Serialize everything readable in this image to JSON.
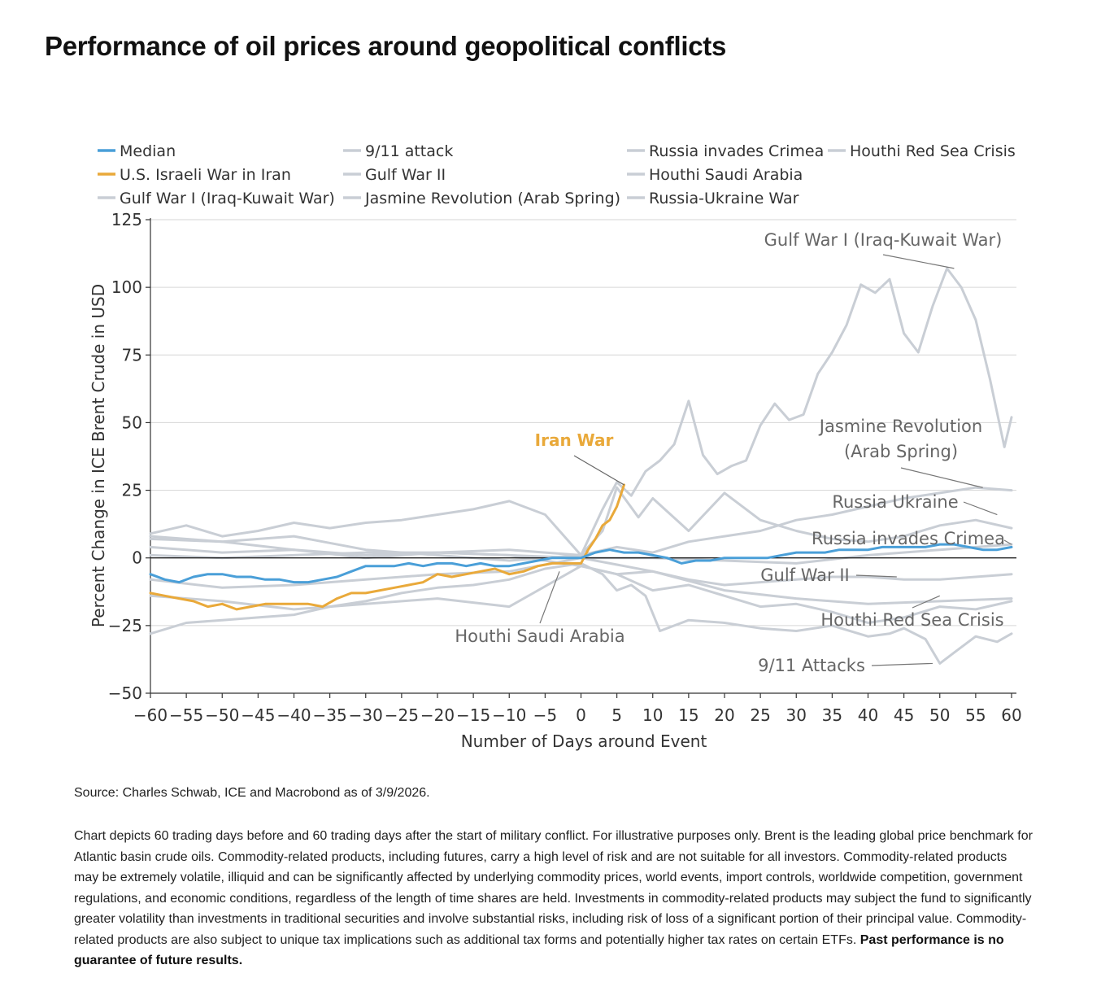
{
  "page": {
    "title": "Performance of oil prices around geopolitical conflicts",
    "source": "Source: Charles Schwab, ICE and Macrobond as of 3/9/2026.",
    "disclaimer": "Chart depicts 60 trading days before and 60 trading days after the start of military conflict. For illustrative purposes only. Brent is the leading global price benchmark for Atlantic basin crude oils. Commodity-related products, including futures, carry a high level of risk and are not suitable for all investors. Commodity-related products may be extremely volatile, illiquid and can be significantly affected by underlying commodity prices, world events, import controls, worldwide competition, government regulations, and economic conditions, regardless of the length of time shares are held. Investments in commodity-related products may subject the fund to significantly greater volatility than investments in traditional securities and involve substantial risks, including risk of loss of a significant portion of their principal value. Commodity-related products are also subject to unique tax implications such as additional tax forms and potentially higher tax rates on certain ETFs.",
    "disclaimer_bold": "Past performance is no guarantee of future results."
  },
  "chart_data": {
    "type": "line",
    "xlabel": "Number of Days around Event",
    "ylabel": "Percent Change in ICE Brent Crude in USD",
    "xlim": [
      -60,
      60
    ],
    "ylim": [
      -50,
      125
    ],
    "xticks": [
      -60,
      -55,
      -50,
      -45,
      -40,
      -35,
      -30,
      -25,
      -20,
      -15,
      -10,
      -5,
      0,
      5,
      10,
      15,
      20,
      25,
      30,
      35,
      40,
      45,
      50,
      55,
      60
    ],
    "yticks": [
      -50,
      -25,
      0,
      25,
      50,
      75,
      100,
      125
    ],
    "legend": [
      "Median",
      "9/11 attack",
      "Russia invades Crimea",
      "Houthi Red Sea Crisis",
      "U.S. Israeli War in Iran",
      "Gulf War II",
      "Houthi Saudi Arabia",
      "Gulf War I (Iraq-Kuwait War)",
      "Jasmine Revolution (Arab Spring)",
      "Russia-Ukraine War"
    ],
    "legend_placement": "top",
    "grid": "horizontal",
    "colors": {
      "median": "#4a9fd8",
      "iran": "#e9a93a",
      "other": "#c9ced5",
      "zero": "#222222",
      "grid": "#d6d6d6",
      "annot": "#555555",
      "iran_annot": "#e9a93a"
    },
    "series": [
      {
        "name": "Gulf War I (Iraq-Kuwait War)",
        "x": [
          -60,
          -55,
          -50,
          -45,
          -40,
          -35,
          -30,
          -25,
          -20,
          -15,
          -10,
          -5,
          0,
          3,
          5,
          7,
          9,
          11,
          13,
          15,
          17,
          19,
          21,
          23,
          25,
          27,
          29,
          31,
          33,
          35,
          37,
          39,
          41,
          43,
          45,
          47,
          49,
          51,
          53,
          55,
          57,
          59,
          60
        ],
        "y": [
          9,
          12,
          8,
          10,
          13,
          11,
          13,
          14,
          16,
          18,
          21,
          16,
          1,
          18,
          28,
          23,
          32,
          36,
          42,
          58,
          38,
          31,
          34,
          36,
          49,
          57,
          51,
          53,
          68,
          76,
          86,
          101,
          98,
          103,
          83,
          76,
          93,
          107,
          100,
          88,
          66,
          41,
          52
        ]
      },
      {
        "name": "Jasmine Revolution (Arab Spring)",
        "x": [
          -60,
          -50,
          -40,
          -30,
          -20,
          -10,
          -5,
          0,
          5,
          10,
          15,
          20,
          25,
          30,
          35,
          40,
          45,
          50,
          55,
          60
        ],
        "y": [
          8,
          6,
          8,
          3,
          1,
          -1,
          0,
          1,
          4,
          2,
          6,
          8,
          10,
          14,
          16,
          19,
          22,
          24,
          26,
          25
        ]
      },
      {
        "name": "Russia-Ukraine War",
        "x": [
          -60,
          -50,
          -40,
          -30,
          -20,
          -10,
          -5,
          0,
          3,
          5,
          8,
          10,
          15,
          20,
          25,
          30,
          35,
          40,
          45,
          50,
          55,
          60
        ],
        "y": [
          4,
          2,
          3,
          1,
          2,
          3,
          2,
          1,
          10,
          26,
          15,
          22,
          10,
          24,
          14,
          10,
          7,
          6,
          8,
          12,
          14,
          11
        ]
      },
      {
        "name": "Russia invades Crimea",
        "x": [
          -60,
          -50,
          -40,
          -30,
          -20,
          -10,
          0,
          10,
          20,
          30,
          40,
          50,
          60
        ],
        "y": [
          1,
          0,
          1,
          2,
          2,
          1,
          0,
          0,
          -1,
          -2,
          1,
          3,
          5
        ]
      },
      {
        "name": "Gulf War II",
        "x": [
          -60,
          -50,
          -40,
          -30,
          -20,
          -10,
          0,
          5,
          10,
          15,
          20,
          25,
          30,
          35,
          40,
          45,
          50,
          55,
          60
        ],
        "y": [
          7,
          6,
          3,
          0,
          2,
          1,
          -3,
          -6,
          -5,
          -8,
          -10,
          -9,
          -8,
          -7,
          -7,
          -8,
          -8,
          -7,
          -6
        ]
      },
      {
        "name": "Houthi Red Sea Crisis",
        "x": [
          -60,
          -50,
          -40,
          -30,
          -20,
          -10,
          0,
          10,
          20,
          30,
          40,
          50,
          60
        ],
        "y": [
          -8,
          -11,
          -10,
          -8,
          -6,
          -5,
          0,
          -5,
          -12,
          -15,
          -17,
          -16,
          -15
        ]
      },
      {
        "name": "Houthi Saudi Arabia",
        "x": [
          -60,
          -50,
          -40,
          -30,
          -20,
          -10,
          0,
          5,
          10,
          15,
          20,
          25,
          30,
          35,
          40,
          45,
          50,
          55,
          60
        ],
        "y": [
          -14,
          -16,
          -19,
          -17,
          -15,
          -18,
          -3,
          -6,
          -12,
          -10,
          -14,
          -18,
          -17,
          -20,
          -24,
          -22,
          -18,
          -19,
          -16
        ]
      },
      {
        "name": "9/11 attack",
        "x": [
          -60,
          -55,
          -50,
          -45,
          -40,
          -35,
          -30,
          -25,
          -20,
          -15,
          -10,
          -5,
          0,
          3,
          5,
          7,
          9,
          11,
          15,
          20,
          25,
          30,
          35,
          40,
          43,
          45,
          48,
          50,
          52,
          55,
          58,
          60
        ],
        "y": [
          -28,
          -24,
          -23,
          -22,
          -21,
          -18,
          -16,
          -13,
          -11,
          -10,
          -8,
          -4,
          -2,
          -6,
          -12,
          -10,
          -14,
          -27,
          -23,
          -24,
          -26,
          -27,
          -25,
          -29,
          -28,
          -26,
          -30,
          -39,
          -35,
          -29,
          -31,
          -28
        ]
      },
      {
        "name": "U.S. Israeli War in Iran",
        "x": [
          -60,
          -58,
          -56,
          -54,
          -52,
          -50,
          -48,
          -46,
          -44,
          -42,
          -40,
          -38,
          -36,
          -34,
          -32,
          -30,
          -28,
          -26,
          -24,
          -22,
          -20,
          -18,
          -16,
          -14,
          -12,
          -10,
          -8,
          -6,
          -4,
          -2,
          0,
          1,
          2,
          3,
          4,
          5,
          6
        ],
        "y": [
          -13,
          -14,
          -15,
          -16,
          -18,
          -17,
          -19,
          -18,
          -17,
          -17,
          -17,
          -17,
          -18,
          -15,
          -13,
          -13,
          -12,
          -11,
          -10,
          -9,
          -6,
          -7,
          -6,
          -5,
          -4,
          -6,
          -5,
          -3,
          -2,
          -2,
          -2,
          3,
          7,
          12,
          14,
          19,
          27
        ]
      },
      {
        "name": "Median",
        "x": [
          -60,
          -58,
          -56,
          -54,
          -52,
          -50,
          -48,
          -46,
          -44,
          -42,
          -40,
          -38,
          -36,
          -34,
          -32,
          -30,
          -28,
          -26,
          -24,
          -22,
          -20,
          -18,
          -16,
          -14,
          -12,
          -10,
          -8,
          -6,
          -4,
          -2,
          0,
          2,
          4,
          6,
          8,
          10,
          12,
          14,
          16,
          18,
          20,
          22,
          24,
          26,
          28,
          30,
          32,
          34,
          36,
          38,
          40,
          42,
          44,
          46,
          48,
          50,
          52,
          54,
          56,
          58,
          60
        ],
        "y": [
          -6,
          -8,
          -9,
          -7,
          -6,
          -6,
          -7,
          -7,
          -8,
          -8,
          -9,
          -9,
          -8,
          -7,
          -5,
          -3,
          -3,
          -3,
          -2,
          -3,
          -2,
          -2,
          -3,
          -2,
          -3,
          -3,
          -2,
          -1,
          0,
          0,
          0,
          2,
          3,
          2,
          2,
          1,
          0,
          -2,
          -1,
          -1,
          0,
          0,
          0,
          0,
          1,
          2,
          2,
          2,
          3,
          3,
          3,
          4,
          4,
          4,
          4,
          5,
          5,
          4,
          3,
          3,
          4
        ]
      }
    ],
    "annotations": [
      {
        "text": "Gulf War I (Iraq-Kuwait War)",
        "series": "Gulf War I (Iraq-Kuwait War)",
        "x": 52,
        "y": 107
      },
      {
        "text": "Iran War",
        "series": "U.S. Israeli War in Iran",
        "x": 6,
        "y": 27
      },
      {
        "text": "Jasmine Revolution",
        "text2": "(Arab Spring)",
        "series": "Jasmine Revolution (Arab Spring)",
        "x": 56,
        "y": 26
      },
      {
        "text": "Russia Ukraine",
        "series": "Russia-Ukraine War",
        "x": 58,
        "y": 16
      },
      {
        "text": "Russia invades Crimea",
        "series": "Russia invades Crimea",
        "x": 60,
        "y": 5
      },
      {
        "text": "Gulf War II",
        "series": "Gulf War II",
        "x": 44,
        "y": -7
      },
      {
        "text": "Houthi Red Sea Crisis",
        "series": "Houthi Red Sea Crisis",
        "x": 50,
        "y": -14
      },
      {
        "text": "Houthi Saudi Arabia",
        "series": "Houthi Saudi Arabia",
        "x": -3,
        "y": -5
      },
      {
        "text": "9/11 Attacks",
        "series": "9/11 attack",
        "x": 49,
        "y": -39
      }
    ]
  }
}
